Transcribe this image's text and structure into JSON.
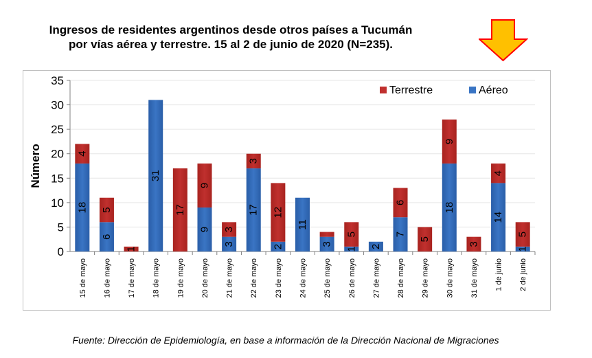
{
  "title_line1": "Ingresos de residentes argentinos desde otros países a Tucumán",
  "title_line2": "por vías aérea y terrestre. 15 al 2 de junio de 2020 (N=235).",
  "source": "Fuente: Dirección de Epidemiología, en base a información de la Dirección Nacional de Migraciones",
  "colors": {
    "terrestre": "#c0302e",
    "aereo": "#3a75c4",
    "arrow_fill": "#ffc000",
    "arrow_stroke": "#ff0000"
  },
  "chart_data": {
    "type": "bar",
    "stacked": true,
    "title": "Ingresos de residentes argentinos desde otros países a Tucumán por vías aérea y terrestre. 15 al 2 de junio de 2020 (N=235).",
    "ylabel": "Número",
    "xlabel": "",
    "ylim": [
      0,
      35
    ],
    "yticks": [
      "0",
      "5",
      "10",
      "15",
      "20",
      "25",
      "30",
      "35"
    ],
    "grid": true,
    "legend_position": "top-right",
    "categories": [
      "15 de mayo",
      "16 de mayo",
      "17 de mayo",
      "18 de mayo",
      "19 de mayo",
      "20 de mayo",
      "21 de mayo",
      "22 de mayo",
      "23 de mayo",
      "24 de mayo",
      "25 de mayo",
      "26 de mayo",
      "27 de mayo",
      "28 de mayo",
      "29 de mayo",
      "30 de mayo",
      "31 de mayo",
      "1 de junio",
      "2 de junio"
    ],
    "series": [
      {
        "name": "Aéreo",
        "values": [
          18,
          6,
          0,
          31,
          0,
          9,
          3,
          17,
          2,
          11,
          3,
          1,
          2,
          7,
          0,
          18,
          0,
          14,
          1
        ]
      },
      {
        "name": "Terrestre",
        "values": [
          4,
          5,
          1,
          0,
          17,
          9,
          3,
          3,
          12,
          0,
          1,
          5,
          0,
          6,
          5,
          9,
          3,
          4,
          5
        ]
      }
    ],
    "data_labels": [
      {
        "aereo": "18",
        "terrestre": "4"
      },
      {
        "aereo": "6",
        "terrestre": "5"
      },
      {
        "aereo": "",
        "terrestre": "1"
      },
      {
        "aereo": "31",
        "terrestre": ""
      },
      {
        "aereo": "",
        "terrestre": "17"
      },
      {
        "aereo": "9",
        "terrestre": "9"
      },
      {
        "aereo": "3",
        "terrestre": "3"
      },
      {
        "aereo": "17",
        "terrestre": "3"
      },
      {
        "aereo": "2",
        "terrestre": "12"
      },
      {
        "aereo": "11",
        "terrestre": ""
      },
      {
        "aereo": "3",
        "terrestre": ""
      },
      {
        "aereo": "1",
        "terrestre": "5"
      },
      {
        "aereo": "2",
        "terrestre": ""
      },
      {
        "aereo": "7",
        "terrestre": "6"
      },
      {
        "aereo": "",
        "terrestre": "5"
      },
      {
        "aereo": "18",
        "terrestre": "9"
      },
      {
        "aereo": "",
        "terrestre": "3"
      },
      {
        "aereo": "14",
        "terrestre": "4"
      },
      {
        "aereo": "1",
        "terrestre": "5"
      }
    ]
  }
}
